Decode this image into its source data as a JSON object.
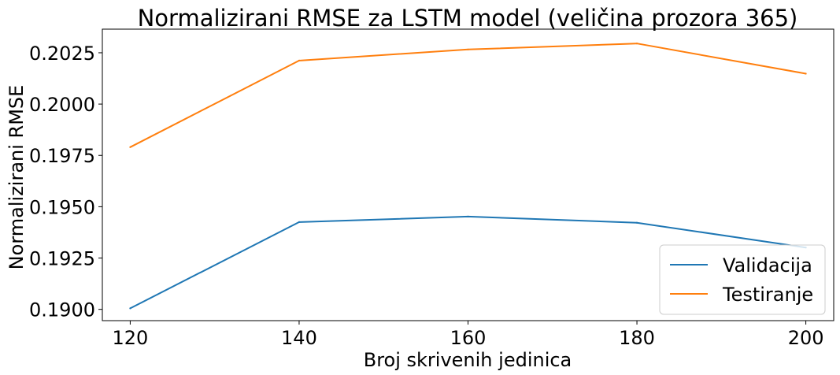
{
  "chart_data": {
    "type": "line",
    "title": "Normalizirani RMSE za LSTM model (veličina prozora 365)",
    "xlabel": "Broj skrivenih jedinica",
    "ylabel": "Normalizirani RMSE",
    "x": [
      120,
      140,
      160,
      180,
      200
    ],
    "x_ticks": [
      "120",
      "140",
      "160",
      "180",
      "200"
    ],
    "y_ticks": [
      "0.1900",
      "0.1925",
      "0.1950",
      "0.1975",
      "0.2000",
      "0.2025"
    ],
    "xlim": [
      116.7,
      203.3
    ],
    "ylim": [
      0.18945,
      0.20365
    ],
    "grid": false,
    "legend_position": "lower-right",
    "series": [
      {
        "name": "Validacija",
        "color": "#1f77b4",
        "values": [
          0.19005,
          0.19425,
          0.19452,
          0.19422,
          0.19301
        ]
      },
      {
        "name": "Testiranje",
        "color": "#ff7f0e",
        "values": [
          0.1979,
          0.20212,
          0.20266,
          0.20295,
          0.20148
        ]
      }
    ]
  }
}
